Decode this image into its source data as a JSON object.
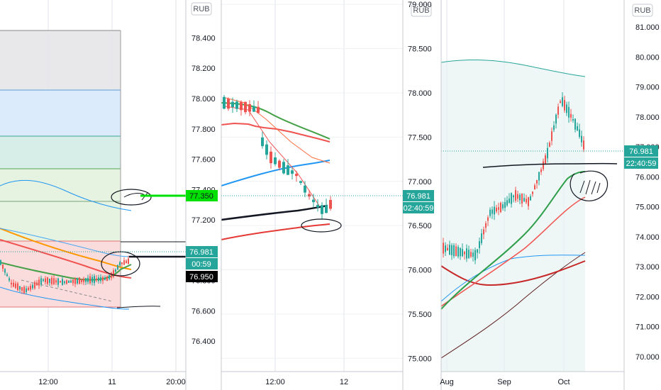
{
  "chart_data": [
    {
      "type": "candlestick",
      "currency": "RUB",
      "ylim": [
        76.2,
        78.65
      ],
      "y_ticks": [
        "78.400",
        "78.200",
        "78.000",
        "77.800",
        "77.600",
        "77.400",
        "77.200",
        "76.800",
        "76.600",
        "76.400"
      ],
      "x_ticks": [
        "12:00",
        "11",
        "20:00"
      ],
      "price_tags": [
        {
          "value": "77.350",
          "style": "green"
        },
        {
          "value": "76.981",
          "style": "teal"
        },
        {
          "value": "00:59",
          "style": "teal"
        },
        {
          "value": "76.950",
          "style": "black"
        }
      ]
    },
    {
      "type": "candlestick",
      "currency": "RUB",
      "ylim": [
        74.85,
        79.05
      ],
      "y_ticks": [
        "79.000",
        "78.500",
        "78.000",
        "77.500",
        "77.000",
        "76.500",
        "76.000",
        "75.500",
        "75.000"
      ],
      "x_ticks": [
        "12:00",
        "12"
      ],
      "price_tags": [
        {
          "value": "76.981",
          "style": "teal"
        },
        {
          "value": "02:40:59",
          "style": "teal"
        }
      ]
    },
    {
      "type": "candlestick",
      "currency": "RUB",
      "ylim": [
        69.5,
        81.9
      ],
      "y_ticks": [
        "81.000",
        "80.000",
        "79.000",
        "78.000",
        "77.000",
        "76.000",
        "75.000",
        "74.000",
        "73.000",
        "72.000",
        "71.000",
        "70.000"
      ],
      "x_ticks": [
        "Aug",
        "Sep",
        "Oct"
      ],
      "price_tags": [
        {
          "value": "76.981",
          "style": "teal"
        },
        {
          "value": "22:40:59",
          "style": "teal"
        }
      ]
    }
  ]
}
